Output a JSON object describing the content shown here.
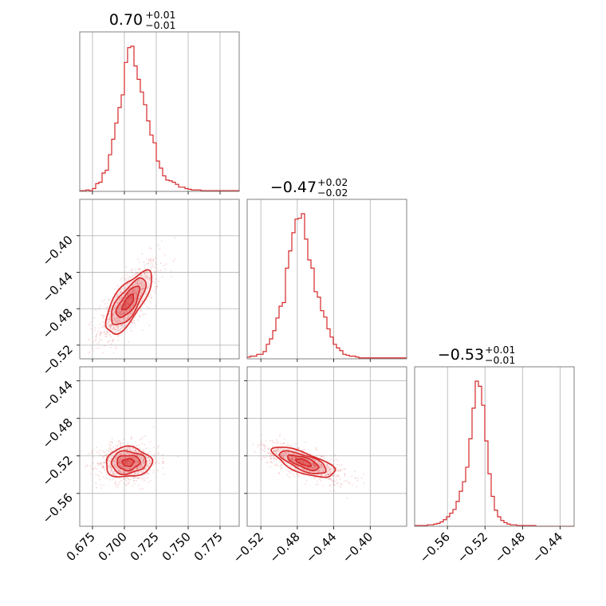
{
  "chart_data": {
    "type": "corner",
    "color": "#d62728",
    "grid": true,
    "parameters": [
      {
        "index": 0,
        "range": [
          0.665,
          0.79
        ],
        "ticks": [
          0.675,
          0.7,
          0.725,
          0.75,
          0.775
        ],
        "tick_labels": [
          "0.675",
          "0.700",
          "0.725",
          "0.750",
          "0.775"
        ],
        "title": {
          "main": "0.70",
          "plus": "+0.01",
          "minus": "−0.01"
        },
        "median": 0.703,
        "sigma": 0.009
      },
      {
        "index": 1,
        "range": [
          -0.535,
          -0.36
        ],
        "ticks": [
          -0.52,
          -0.48,
          -0.44,
          -0.4
        ],
        "tick_labels": [
          "−0.52",
          "−0.48",
          "−0.44",
          "−0.40"
        ],
        "title": {
          "main": "−0.47",
          "plus": "+0.02",
          "minus": "−0.02"
        },
        "median": -0.473,
        "sigma": 0.017
      },
      {
        "index": 2,
        "range": [
          -0.595,
          -0.425
        ],
        "ticks": [
          -0.56,
          -0.52,
          -0.48,
          -0.44
        ],
        "tick_labels": [
          "−0.56",
          "−0.52",
          "−0.48",
          "−0.44"
        ],
        "title": {
          "main": "−0.53",
          "plus": "+0.01",
          "minus": "−0.01"
        },
        "median": -0.527,
        "sigma": 0.008
      }
    ],
    "histograms": [
      {
        "param": 0,
        "bins_start": 0.665,
        "bin_width": 0.0025,
        "counts": [
          1,
          1,
          2,
          1,
          4,
          11,
          13,
          26,
          30,
          52,
          74,
          97,
          119,
          137,
          183,
          204,
          206,
          178,
          159,
          141,
          123,
          100,
          80,
          69,
          43,
          33,
          22,
          16,
          15,
          13,
          10,
          6,
          6,
          4,
          3,
          2,
          2,
          2,
          1,
          1,
          1,
          1,
          1,
          1,
          1,
          1,
          1,
          1,
          1,
          1
        ]
      },
      {
        "param": 1,
        "bins_start": -0.535,
        "bin_width": 0.0035,
        "counts": [
          2,
          3,
          3,
          5,
          5,
          8,
          16,
          22,
          31,
          45,
          58,
          62,
          100,
          119,
          139,
          154,
          155,
          160,
          132,
          109,
          100,
          74,
          68,
          53,
          46,
          33,
          24,
          16,
          12,
          9,
          5,
          4,
          3,
          3,
          2,
          1,
          1,
          1,
          1,
          1,
          1,
          1,
          1,
          1,
          1,
          1,
          1,
          1,
          1,
          1
        ]
      },
      {
        "param": 2,
        "bins_start": -0.595,
        "bin_width": 0.0034,
        "counts": [
          1,
          1,
          1,
          1,
          2,
          2,
          3,
          4,
          6,
          9,
          13,
          18,
          23,
          34,
          48,
          61,
          81,
          120,
          162,
          199,
          192,
          166,
          117,
          72,
          41,
          22,
          13,
          8,
          5,
          3,
          2,
          2,
          1,
          1,
          1,
          1,
          1,
          1,
          0,
          0,
          0,
          0,
          0,
          0,
          0,
          0,
          0,
          0,
          0,
          0
        ]
      }
    ],
    "pairs": [
      {
        "x": 0,
        "y": 1,
        "mean": [
          0.703,
          -0.473
        ],
        "sd": [
          0.009,
          0.017
        ],
        "corr": 0.72
      },
      {
        "x": 0,
        "y": 2,
        "mean": [
          0.703,
          -0.527
        ],
        "sd": [
          0.009,
          0.008
        ],
        "corr": 0.05
      },
      {
        "x": 1,
        "y": 2,
        "mean": [
          -0.473,
          -0.527
        ],
        "sd": [
          0.017,
          0.008
        ],
        "corr": -0.7
      }
    ],
    "contour_levels_sigma": [
      0.5,
      1.0,
      1.5,
      2.0
    ]
  }
}
